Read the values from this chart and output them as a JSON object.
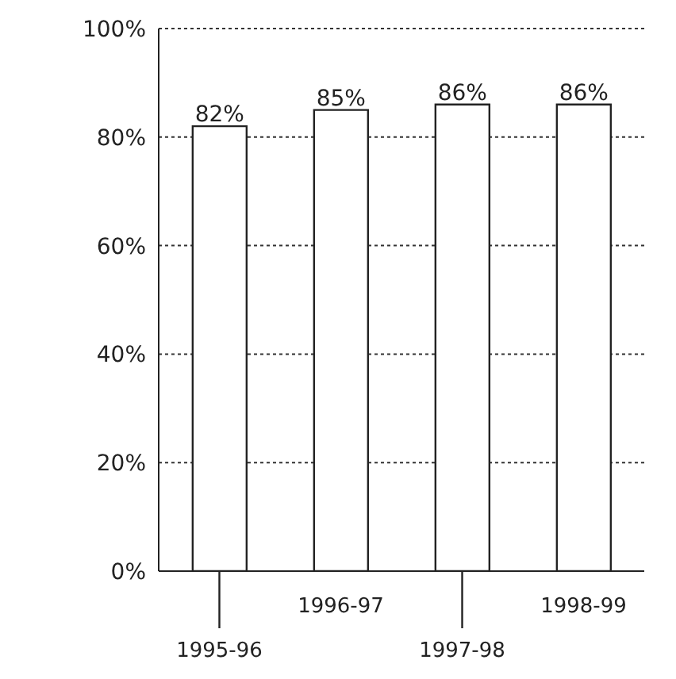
{
  "chart_data": {
    "type": "bar",
    "categories": [
      "1995-96",
      "1996-97",
      "1997-98",
      "1998-99"
    ],
    "values": [
      82,
      85,
      86,
      86
    ],
    "color": "#ffffff",
    "value_labels": [
      "82%",
      "85%",
      "86%",
      "86%"
    ],
    "ylim": [
      0,
      100
    ],
    "yticks": [
      {
        "value": 0,
        "label": "0%"
      },
      {
        "value": 20,
        "label": "20%"
      },
      {
        "value": 40,
        "label": "40%"
      },
      {
        "value": 60,
        "label": "60%"
      },
      {
        "value": 80,
        "label": "80%"
      },
      {
        "value": 100,
        "label": "100%"
      }
    ],
    "grid": "y",
    "legend": false
  }
}
